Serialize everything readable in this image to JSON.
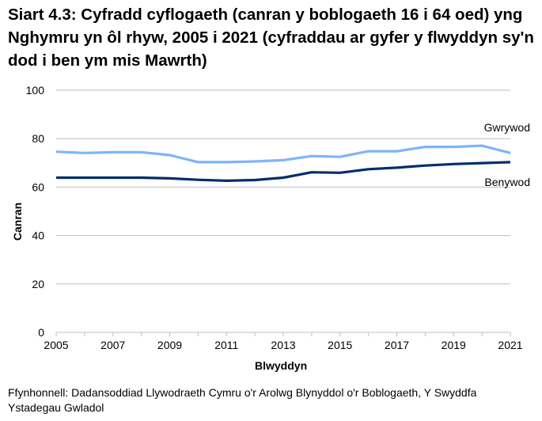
{
  "title": "Siart 4.3: Cyfradd cyflogaeth (canran y boblogaeth 16 i 64 oed) yng Nghymru yn ôl rhyw, 2005 i 2021 (cyfraddau ar gyfer y flwyddyn sy'n dod i ben ym mis Mawrth)",
  "ylabel": "Canran",
  "xlabel": "Blwyddyn",
  "source": "Ffynhonnell: Dadansoddiad Llywodraeth Cymru o'r Arolwg Blynyddol o'r Boblogaeth, Y Swyddfa Ystadegau Gwladol",
  "colors": {
    "gwrywod": "#7DB4FC",
    "benywod": "#002E6B",
    "grid": "#BFBFBF"
  },
  "chart_data": {
    "type": "line",
    "title": "Siart 4.3: Cyfradd cyflogaeth (canran y boblogaeth 16 i 64 oed) yng Nghymru yn ôl rhyw, 2005 i 2021 (cyfraddau ar gyfer y flwyddyn sy'n dod i ben ym mis Mawrth)",
    "xlabel": "Blwyddyn",
    "ylabel": "Canran",
    "ylim": [
      0,
      100
    ],
    "yticks": [
      0,
      20,
      40,
      60,
      80,
      100
    ],
    "xticks_labeled": [
      "2005",
      "2007",
      "2009",
      "2011",
      "2013",
      "2015",
      "2017",
      "2019",
      "2021"
    ],
    "grid": true,
    "legend_position": "inline-right",
    "x": [
      2005,
      2006,
      2007,
      2008,
      2009,
      2010,
      2011,
      2012,
      2013,
      2014,
      2015,
      2016,
      2017,
      2018,
      2019,
      2020,
      2021
    ],
    "series": [
      {
        "name": "Gwrywod",
        "color": "#7DB4FC",
        "values": [
          74.6,
          74.1,
          74.4,
          74.4,
          73.2,
          70.3,
          70.3,
          70.6,
          71.1,
          72.8,
          72.5,
          74.8,
          74.8,
          76.6,
          76.6,
          77.1,
          74.1
        ]
      },
      {
        "name": "Benywod",
        "color": "#002E6B",
        "values": [
          63.9,
          63.9,
          63.9,
          63.9,
          63.6,
          63.0,
          62.6,
          62.9,
          63.9,
          66.1,
          65.9,
          67.4,
          68.0,
          68.9,
          69.5,
          69.9,
          70.3
        ]
      }
    ]
  }
}
